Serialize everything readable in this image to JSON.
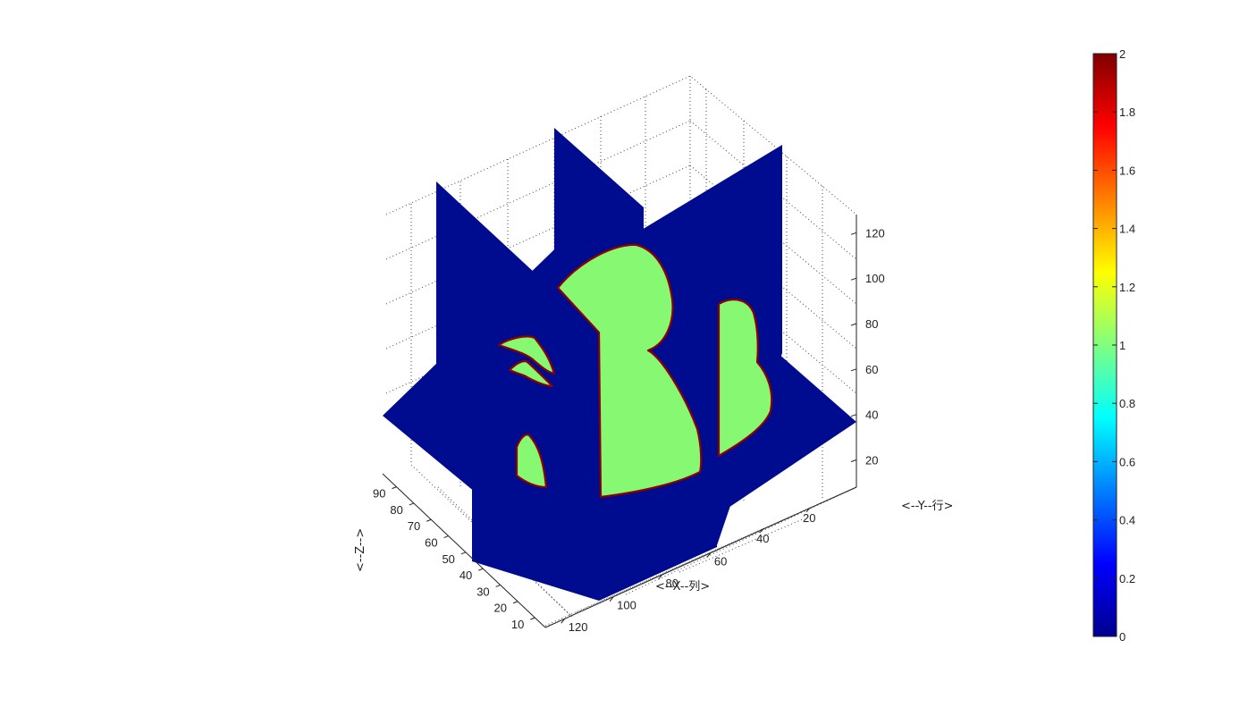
{
  "chart_data": {
    "type": "slice",
    "axes": {
      "x": {
        "label": "<--X--列>",
        "ticks": [
          60,
          80,
          100,
          120
        ]
      },
      "y": {
        "label": "<--Y--行>",
        "ticks": [
          20,
          40
        ]
      },
      "z": {
        "label": "<--Z-->",
        "ticks": [
          10,
          20,
          30,
          40,
          50,
          60,
          70,
          80,
          90
        ]
      },
      "vertical": {
        "ticks": [
          20,
          40,
          60,
          80,
          100,
          120
        ]
      }
    },
    "colorbar": {
      "min": 0,
      "max": 2,
      "ticks": [
        "0",
        "0.2",
        "0.4",
        "0.6",
        "0.8",
        "1",
        "1.2",
        "1.4",
        "1.6",
        "1.8",
        "2"
      ],
      "colormap": "jet"
    },
    "colors": {
      "background_value_0": "#000c8f",
      "region_value_1": "#86f872",
      "edge_value_2": "#8b0000"
    },
    "grid": true
  }
}
